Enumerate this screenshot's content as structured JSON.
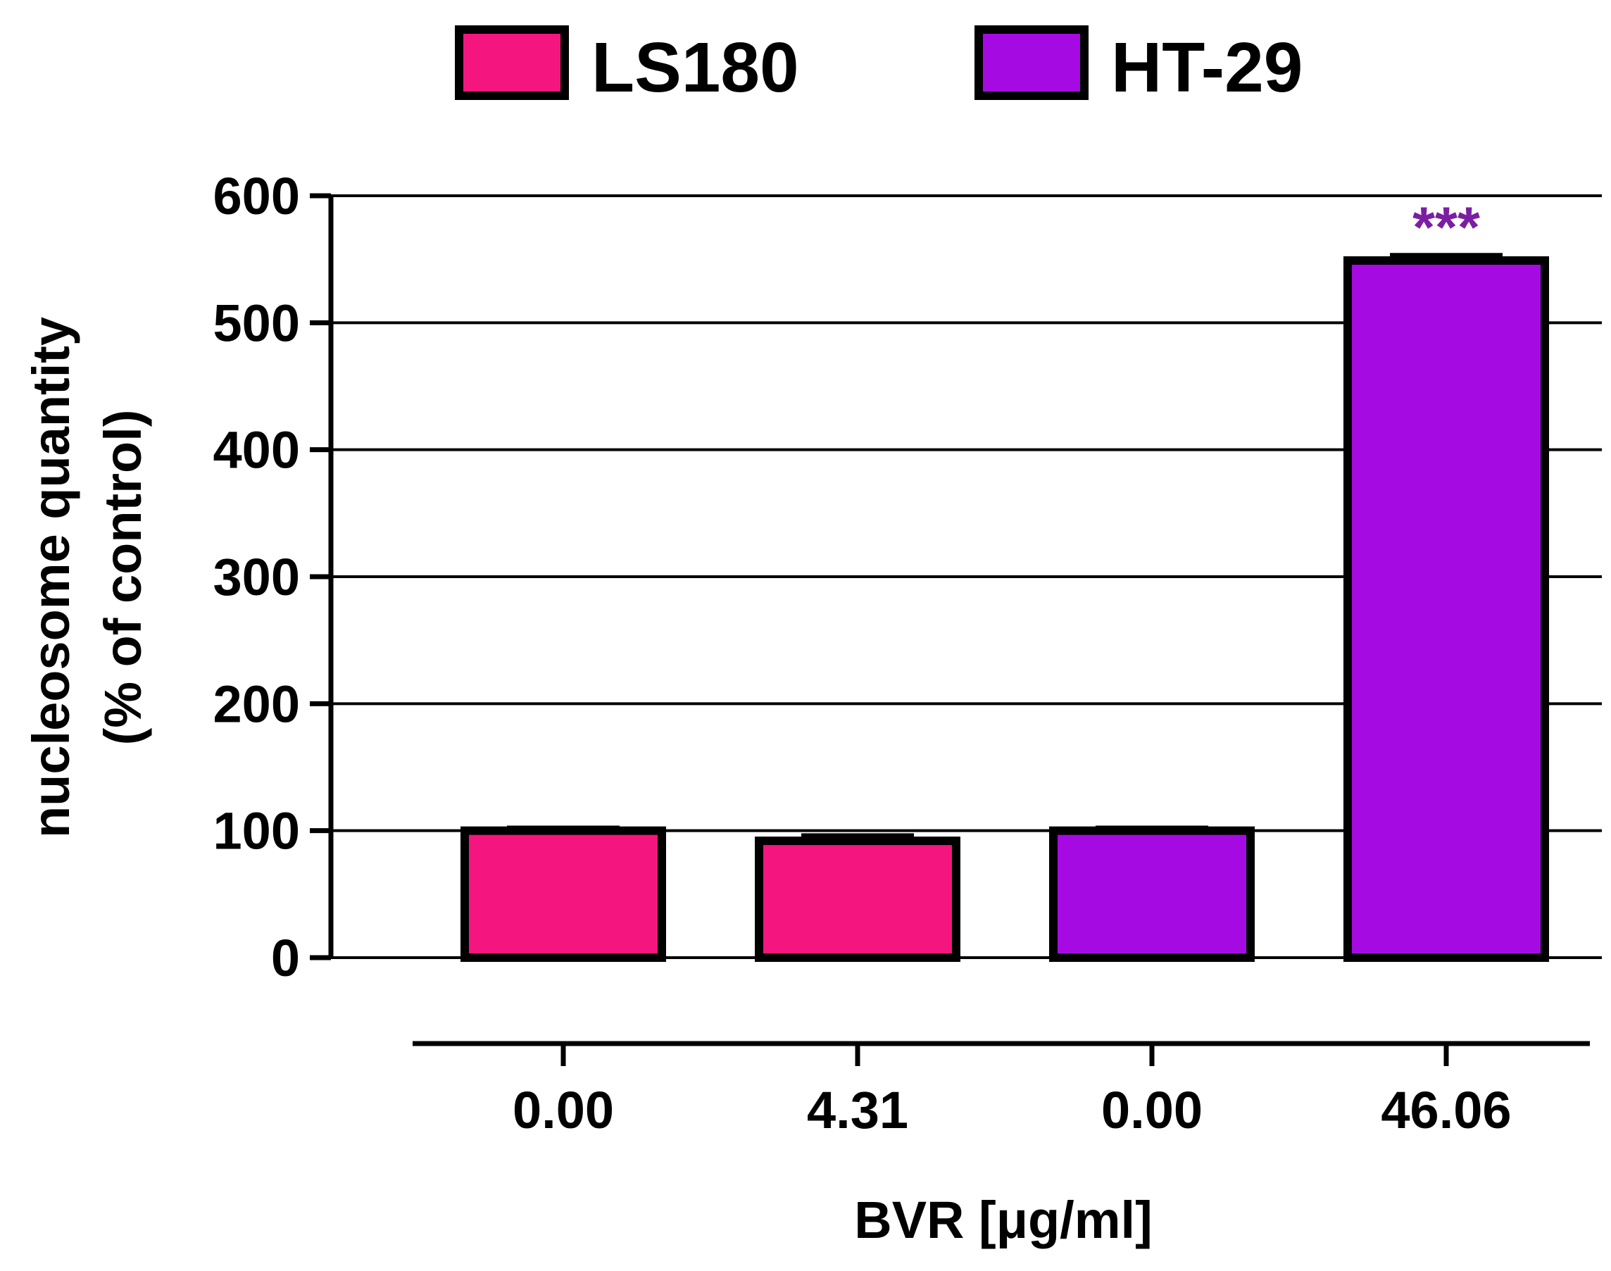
{
  "chart_data": {
    "type": "bar",
    "categories": [
      "0.00",
      "4.31",
      "0.00",
      "46.06"
    ],
    "values": [
      100,
      92,
      100,
      549
    ],
    "errors": [
      2,
      4,
      2,
      4
    ],
    "bar_series": [
      "LS180",
      "LS180",
      "HT-29",
      "HT-29"
    ],
    "series": [
      {
        "name": "LS180",
        "color": "#f5157f",
        "values": [
          100,
          92,
          null,
          null
        ]
      },
      {
        "name": "HT-29",
        "color": "#a60ae3",
        "values": [
          null,
          null,
          100,
          549
        ]
      }
    ],
    "annotations": [
      {
        "text": "***",
        "category_index": 3,
        "color": "#7b1fa2"
      }
    ],
    "xlabel": "BVR [μg/ml]",
    "ylabel_lines": [
      "nucleosome quantity",
      "(% of control)"
    ],
    "ylim": [
      0,
      600
    ],
    "yticks": [
      0,
      100,
      200,
      300,
      400,
      500,
      600
    ],
    "grid": true,
    "legend_position": "top-center"
  }
}
